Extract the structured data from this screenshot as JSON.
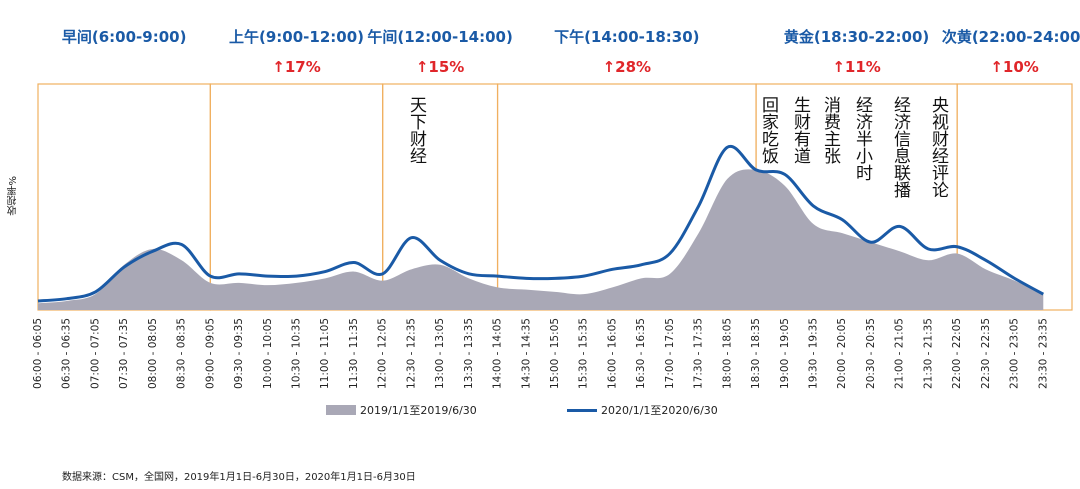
{
  "chart_data": {
    "type": "area",
    "title": "",
    "ylabel": "收视率%",
    "xlabel": "",
    "ylim": [
      0,
      100
    ],
    "x": [
      "06:00 - 06:05",
      "06:30 - 06:35",
      "07:00 - 07:05",
      "07:30 - 07:35",
      "08:00 - 08:05",
      "08:30 - 08:35",
      "09:00 - 09:05",
      "09:30 - 09:35",
      "10:00 - 10:05",
      "10:30 - 10:35",
      "11:00 - 11:05",
      "11:30 - 11:35",
      "12:00 - 12:05",
      "12:30 - 12:35",
      "13:00 - 13:05",
      "13:30 - 13:35",
      "14:00 - 14:05",
      "14:30 - 14:35",
      "15:00 - 15:05",
      "15:30 - 15:35",
      "16:00 - 16:05",
      "16:30 - 16:35",
      "17:00 - 17:05",
      "17:30 - 17:35",
      "18:00 - 18:05",
      "18:30 - 18:35",
      "19:00 - 19:05",
      "19:30 - 19:35",
      "20:00 - 20:05",
      "20:30 - 20:35",
      "21:00 - 21:05",
      "21:30 - 21:35",
      "22:00 - 22:05",
      "22:30 - 22:35",
      "23:00 - 23:05",
      "23:30 - 23:35"
    ],
    "series": [
      {
        "name": "2019/1/1至2019/6/30",
        "type": "area",
        "color": "#a9a8b6",
        "values": [
          3,
          4,
          7,
          20,
          27,
          22,
          12,
          12,
          11,
          12,
          14,
          17,
          13,
          18,
          20,
          14,
          10,
          9,
          8,
          7,
          10,
          14,
          16,
          34,
          58,
          62,
          55,
          38,
          34,
          30,
          26,
          22,
          25,
          18,
          13,
          7
        ]
      },
      {
        "name": "2020/1/1至2020/6/30",
        "type": "line",
        "color": "#1a5aa6",
        "values": [
          4,
          5,
          8,
          19,
          26,
          29,
          15,
          16,
          15,
          15,
          17,
          21,
          16,
          32,
          22,
          16,
          15,
          14,
          14,
          15,
          18,
          20,
          25,
          46,
          72,
          62,
          60,
          46,
          40,
          30,
          37,
          27,
          28,
          22,
          14,
          7
        ]
      }
    ],
    "periods": [
      {
        "label": "早间(6:00-9:00)",
        "change": ""
      },
      {
        "label": "上午(9:00-12:00)",
        "change": "↑17%"
      },
      {
        "label": "午间(12:00-14:00)",
        "change": "↑15%"
      },
      {
        "label": "下午(14:00-18:30)",
        "change": "↑28%"
      },
      {
        "label": "黄金(18:30-22:00)",
        "change": "↑11%"
      },
      {
        "label": "次黄(22:00-24:00)",
        "change": "↑10%"
      }
    ],
    "annotations": [
      "天下财经",
      "回家吃饭",
      "生财有道",
      "消费主张",
      "经济半小时",
      "经济信息联播",
      "央视财经评论"
    ],
    "source": "数据来源：CSM，全国网，2019年1月1日-6月30日，2020年1月1日-6月30日"
  }
}
